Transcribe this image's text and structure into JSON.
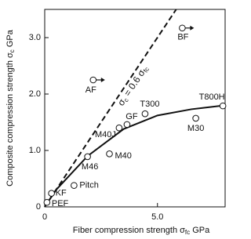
{
  "chart_data": {
    "type": "scatter",
    "xlabel": [
      "Fiber compression strength σ",
      "fc",
      " GPa"
    ],
    "ylabel": [
      "Composite compression strength σ",
      "c",
      " GPa"
    ],
    "annotation": [
      "σ",
      "c",
      " = 0.6 σ",
      "fc"
    ],
    "xlim": [
      0,
      8
    ],
    "ylim": [
      0,
      3.5
    ],
    "xticks": [
      0,
      {
        "value": 5,
        "label": "5.0"
      }
    ],
    "yticks": [
      0,
      {
        "value": 1,
        "label": "1.0"
      },
      {
        "value": 2,
        "label": "2.0"
      },
      {
        "value": 3,
        "label": "3.0"
      }
    ],
    "points": {
      "labels": [
        "PEF",
        "KF",
        "Pitch",
        "M46",
        "M40",
        "M40J",
        "GF",
        "T300",
        "M30",
        "T800H",
        "AF",
        "BF"
      ],
      "x": [
        0.1,
        0.3,
        1.3,
        1.9,
        2.87,
        3.3,
        3.65,
        4.45,
        6.7,
        7.9,
        2.15,
        6.1
      ],
      "values": [
        0.08,
        0.24,
        0.38,
        0.89,
        0.94,
        1.4,
        1.46,
        1.65,
        1.57,
        1.79,
        2.25,
        3.17
      ],
      "arrows": [
        false,
        false,
        false,
        false,
        false,
        false,
        false,
        false,
        false,
        false,
        true,
        true
      ]
    },
    "lines": [
      {
        "style": "dashed",
        "x": [
          0,
          5.83
        ],
        "values": [
          0,
          3.5
        ]
      },
      {
        "style": "solid",
        "x": [
          0,
          0.5,
          1.9,
          3.5,
          5,
          6.5,
          8
        ],
        "values": [
          0,
          0.3,
          0.9,
          1.38,
          1.62,
          1.73,
          1.8
        ]
      }
    ]
  }
}
